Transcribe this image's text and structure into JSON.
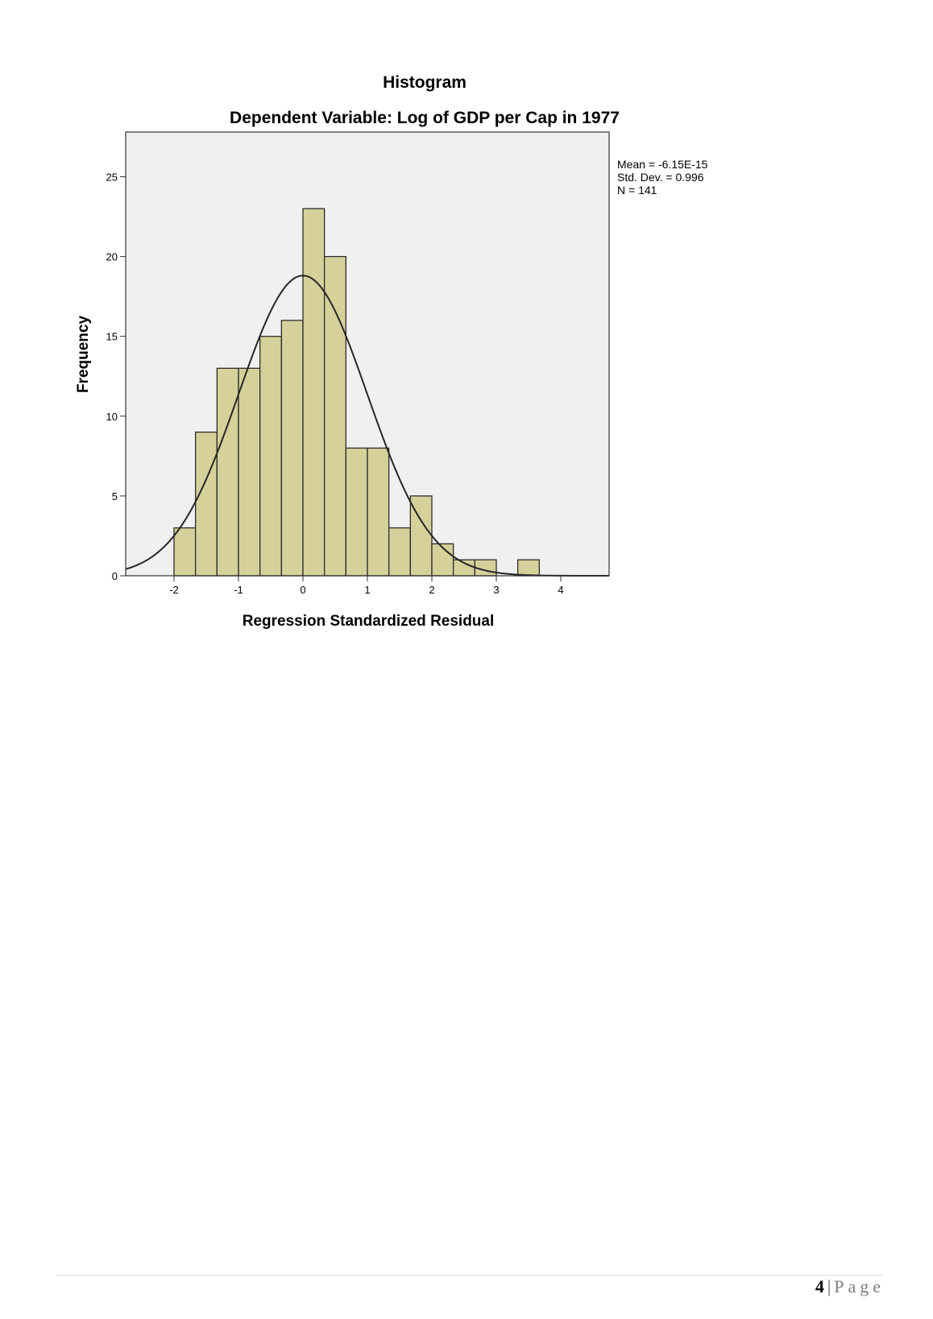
{
  "chart_data": {
    "type": "bar",
    "title": "Histogram",
    "subtitle": "Dependent Variable: Log of GDP per Cap in 1977",
    "xlabel": "Regression Standardized Residual",
    "ylabel": "Frequency",
    "xlim": [
      -2.75,
      4.75
    ],
    "ylim": [
      0,
      27.8
    ],
    "x_ticks": [
      -2,
      -1,
      0,
      1,
      2,
      3,
      4
    ],
    "y_ticks": [
      0,
      5,
      10,
      15,
      20,
      25
    ],
    "bin_edges": [
      -2.0,
      -1.667,
      -1.333,
      -1.0,
      -0.667,
      -0.333,
      0.0,
      0.333,
      0.667,
      1.0,
      1.333,
      1.667,
      2.0,
      2.333,
      2.667,
      3.0,
      3.333,
      3.667
    ],
    "values": [
      3,
      9,
      13,
      13,
      15,
      16,
      23,
      20,
      8,
      8,
      3,
      5,
      2,
      1,
      1,
      0,
      1
    ],
    "normal_curve": {
      "mean": -6.15e-15,
      "std": 0.996,
      "n": 141
    },
    "stats": [
      "Mean = -6.15E-15",
      "Std. Dev. = 0.996",
      "N = 141"
    ],
    "grid": false,
    "colors": {
      "bar_fill": "#d6d19a",
      "bar_stroke": "#2b2b2b",
      "plot_bg": "#f0f0f0",
      "curve": "#262626"
    }
  },
  "footer": {
    "page_number": "4",
    "separator": "|",
    "page_word": "Page"
  }
}
